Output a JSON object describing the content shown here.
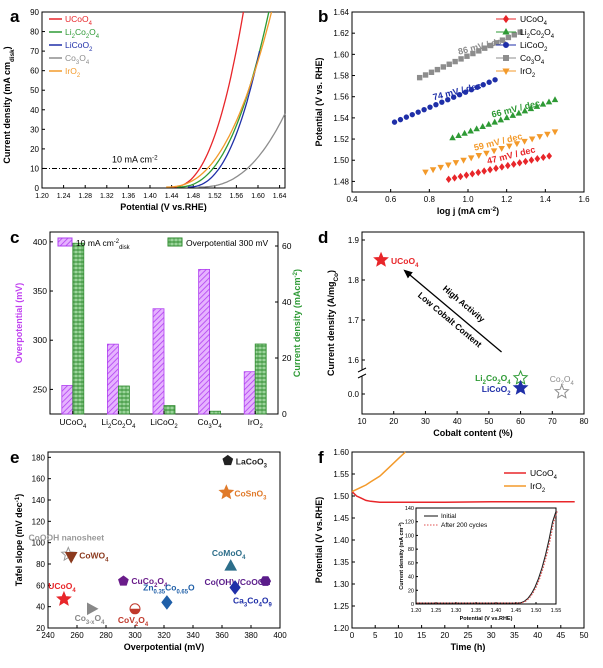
{
  "panel_letters": [
    "a",
    "b",
    "c",
    "d",
    "e",
    "f"
  ],
  "chart_data": [
    {
      "panel": "a",
      "type": "line",
      "xlabel": "Potential (V vs.RHE)",
      "ylabel": "Current density (mA cm",
      "ylabel_sub": "disk",
      "ylabel_end": ")",
      "xlim": [
        1.2,
        1.65
      ],
      "ylim": [
        0,
        90
      ],
      "xticks": [
        "1.20",
        "1.24",
        "1.28",
        "1.32",
        "1.36",
        "1.40",
        "1.44",
        "1.48",
        "1.52",
        "1.56",
        "1.60",
        "1.64"
      ],
      "yticks": [
        "0",
        "10",
        "20",
        "30",
        "40",
        "50",
        "60",
        "70",
        "80",
        "90"
      ],
      "annotation": "10 mA cm",
      "annotation_sup": "-2",
      "reference_line_y": 10,
      "series": [
        {
          "name": "UCoO",
          "sub": "4",
          "color": "#e8262a",
          "onset": 1.44,
          "end": [
            1.573,
            90
          ]
        },
        {
          "name": "Li",
          "sub2": "2",
          "name2": "Co",
          "sub3": "2",
          "name3": "O",
          "sub": "4",
          "label": "Li2Co2O4",
          "color": "#2e9a35",
          "onset": 1.45,
          "end": [
            1.62,
            90
          ]
        },
        {
          "name": "LiCoO",
          "sub": "2",
          "color": "#1f2fa8",
          "onset": 1.47,
          "end": [
            1.603,
            70
          ]
        },
        {
          "name": "Co",
          "sub": "3",
          "name2": "O",
          "sub2": "4",
          "label": "Co3O4",
          "color": "#8d8d8d",
          "onset": 1.49,
          "end": [
            1.65,
            38
          ]
        },
        {
          "name": "IrO",
          "sub": "2",
          "color": "#f39a2b",
          "onset": 1.43,
          "end": [
            1.625,
            90
          ]
        }
      ]
    },
    {
      "panel": "b",
      "type": "scatter",
      "xlabel": "log j (mA cm",
      "xlabel_sup": "-2",
      "ylabel": "Potential (V vs. RHE)",
      "xlim": [
        0.4,
        1.6
      ],
      "ylim": [
        1.47,
        1.64
      ],
      "xticks": [
        "0.4",
        "0.6",
        "0.8",
        "1.0",
        "1.2",
        "1.4",
        "1.6"
      ],
      "yticks": [
        "1.48",
        "1.50",
        "1.52",
        "1.54",
        "1.56",
        "1.58",
        "1.60",
        "1.62",
        "1.64"
      ],
      "series": [
        {
          "name": "UCoO4",
          "color": "#e8262a",
          "marker": "diamond",
          "x": [
            0.9,
            1.42
          ],
          "y": [
            1.482,
            1.504
          ],
          "tafel": "47 mV / dec"
        },
        {
          "name": "Li2Co2O4",
          "color": "#2e9a35",
          "marker": "triangle-up",
          "x": [
            0.92,
            1.45
          ],
          "y": [
            1.521,
            1.557
          ],
          "tafel": "66 mV / dec"
        },
        {
          "name": "LiCoO2",
          "color": "#1f2fa8",
          "marker": "circle",
          "x": [
            0.62,
            1.14
          ],
          "y": [
            1.536,
            1.576
          ],
          "tafel": "74 mV / dec"
        },
        {
          "name": "Co3O4",
          "color": "#8d8d8d",
          "marker": "square",
          "x": [
            0.75,
            1.27
          ],
          "y": [
            1.578,
            1.621
          ],
          "tafel": "86 mV / dec"
        },
        {
          "name": "IrO2",
          "color": "#f39a2b",
          "marker": "triangle-down",
          "x": [
            0.78,
            1.45
          ],
          "y": [
            1.489,
            1.527
          ],
          "tafel": "59 mV / dec"
        }
      ],
      "legend": [
        "UCoO",
        "Li",
        "LiCoO",
        "Co",
        "IrO"
      ]
    },
    {
      "panel": "c",
      "type": "bar",
      "ylabel_left": "Overpotential (mV)",
      "ylabel_right": "Current density (mAcm",
      "ylabel_right_sup": "-2",
      "categories": [
        "UCoO4",
        "Li2Co2O4",
        "LiCoO2",
        "Co3O4",
        "IrO2"
      ],
      "series": [
        {
          "name": "10 mA cm-2 disk",
          "color": "#cc66ff",
          "axis": "left",
          "values": [
            254,
            296,
            332,
            372,
            268
          ]
        },
        {
          "name": "Overpotential 300 mV",
          "color": "#4fae4f",
          "axis": "right",
          "values": [
            61,
            10,
            3,
            1,
            25
          ]
        }
      ],
      "ylim_left": [
        225,
        410
      ],
      "yticks_left": [
        "250",
        "300",
        "350",
        "400"
      ],
      "ylim_right": [
        0,
        65
      ],
      "yticks_right": [
        "0",
        "20",
        "40",
        "60"
      ],
      "legend": [
        "10 mA cm",
        "Overpotential 300 mV"
      ]
    },
    {
      "panel": "d",
      "type": "scatter",
      "xlabel": "Cobalt content (%)",
      "ylabel": "Current density (A/mg",
      "ylabel_sub": "Co",
      "ylabel_end": ")",
      "xlim": [
        10,
        80
      ],
      "xticks": [
        "10",
        "20",
        "30",
        "40",
        "50",
        "60",
        "70",
        "80"
      ],
      "yticks": [
        "0.0",
        "1.6",
        "1.7",
        "1.8",
        "1.9"
      ],
      "arrow_text_1": "High Activity",
      "arrow_text_2": "Low Cobalt Content",
      "points": [
        {
          "name": "UCoO4",
          "x": 16,
          "y": 1.85,
          "color": "#e8262a",
          "filled": true
        },
        {
          "name": "Li2Co2O4",
          "x": 60,
          "y": 0.08,
          "color": "#2e9a35",
          "filled": false
        },
        {
          "name": "LiCoO2",
          "x": 60,
          "y": 0.03,
          "color": "#1f2fa8",
          "filled": true
        },
        {
          "name": "Co3O4",
          "x": 73,
          "y": 0.01,
          "color": "#8d8d8d",
          "filled": false
        }
      ]
    },
    {
      "panel": "e",
      "type": "scatter",
      "xlabel": "Overpotential (mV)",
      "ylabel": "Tafel slope (mV dec",
      "ylabel_sup": "-1",
      "ylabel_end": ")",
      "xlim": [
        240,
        400
      ],
      "ylim": [
        20,
        185
      ],
      "xticks": [
        "240",
        "260",
        "280",
        "300",
        "320",
        "340",
        "360",
        "380",
        "400"
      ],
      "yticks": [
        "20",
        "40",
        "60",
        "80",
        "100",
        "120",
        "140",
        "160",
        "180"
      ],
      "points": [
        {
          "label": "LaCoO3",
          "x": 364,
          "y": 177,
          "color": "#222222",
          "marker": "pentagon"
        },
        {
          "label": "CoSnO3",
          "x": 363,
          "y": 147,
          "color": "#e07a2a",
          "marker": "star-filled"
        },
        {
          "label": "CoOOH nanosheet",
          "x": 254,
          "y": 89,
          "color": "#999999",
          "marker": "star-open"
        },
        {
          "label": "CoWO4",
          "x": 256,
          "y": 87,
          "color": "#8b3a1e",
          "marker": "triangle-down"
        },
        {
          "label": "CuCo2O4",
          "x": 292,
          "y": 64,
          "color": "#6a1c8a",
          "marker": "pentagon"
        },
        {
          "label": "CoMoO4",
          "x": 366,
          "y": 78,
          "color": "#2d6e8a",
          "marker": "triangle-up"
        },
        {
          "label": "Co(OH)2/CoOOH",
          "x": 390,
          "y": 64,
          "color": "#5a1c8a",
          "marker": "hexagon"
        },
        {
          "label": "Zn0.35Co0.65O",
          "x": 322,
          "y": 44,
          "color": "#1f5fa8",
          "marker": "diamond"
        },
        {
          "label": "Ca3Co4O9",
          "x": 369,
          "y": 58,
          "color": "#1f2fa8",
          "marker": "diamond"
        },
        {
          "label": "UCoO4",
          "x": 251,
          "y": 47,
          "color": "#e8262a",
          "marker": "star-filled"
        },
        {
          "label": "Co3-xO4",
          "x": 270,
          "y": 38,
          "color": "#888888",
          "marker": "triangle-right"
        },
        {
          "label": "CoV2O4",
          "x": 300,
          "y": 38,
          "color": "#c0392b",
          "marker": "circle-half"
        }
      ]
    },
    {
      "panel": "f",
      "type": "line",
      "xlabel": "Time (h)",
      "ylabel": "Potential (V vs.RHE)",
      "xlim": [
        0,
        50
      ],
      "ylim": [
        1.2,
        1.6
      ],
      "xticks": [
        "0",
        "5",
        "10",
        "15",
        "20",
        "25",
        "30",
        "35",
        "40",
        "45",
        "50"
      ],
      "yticks": [
        "1.20",
        "1.25",
        "1.30",
        "1.35",
        "1.40",
        "1.45",
        "1.50",
        "1.55",
        "1.60"
      ],
      "series": [
        {
          "name": "UCoO",
          "sub": "4",
          "color": "#e8262a",
          "t": [
            0,
            1,
            2,
            3,
            4,
            6,
            10,
            20,
            30,
            48
          ],
          "v": [
            1.51,
            1.5,
            1.495,
            1.49,
            1.488,
            1.486,
            1.486,
            1.486,
            1.487,
            1.487
          ]
        },
        {
          "name": "IrO",
          "sub": "2",
          "color": "#f39a2b",
          "t": [
            0,
            1,
            2,
            3,
            4,
            6,
            8,
            10,
            11.5
          ],
          "v": [
            1.51,
            1.515,
            1.52,
            1.525,
            1.532,
            1.545,
            1.565,
            1.585,
            1.6
          ]
        }
      ],
      "inset": {
        "xlabel": "Potential (V vs.RHE)",
        "ylabel": "Current density (mA cm",
        "ylabel_sup": "-2",
        "ylabel_end": ")",
        "xlim": [
          1.2,
          1.55
        ],
        "ylim": [
          0,
          140
        ],
        "xticks": [
          "1.20",
          "1.25",
          "1.30",
          "1.35",
          "1.40",
          "1.45",
          "1.50",
          "1.55"
        ],
        "yticks": [
          "0",
          "20",
          "40",
          "60",
          "80",
          "100",
          "120",
          "140"
        ],
        "series": [
          {
            "name": "Initial",
            "color": "#222222",
            "style": "solid"
          },
          {
            "name": "After 200 cycles",
            "color": "#e05050",
            "style": "dotted"
          }
        ]
      }
    }
  ]
}
